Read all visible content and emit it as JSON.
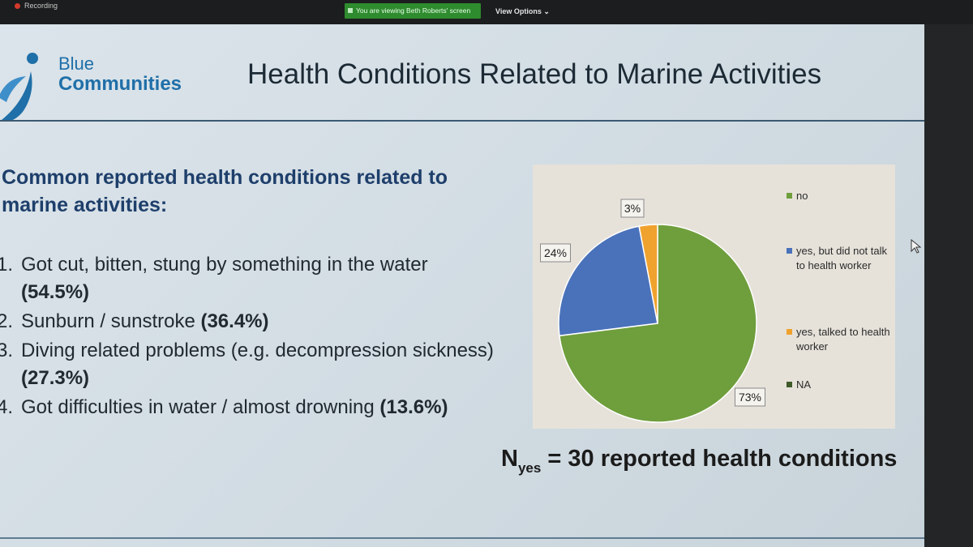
{
  "meeting": {
    "recording_text": "Recording",
    "share_banner": "You are viewing Beth Roberts' screen",
    "view_options": "View Options"
  },
  "logo": {
    "line1": "Blue",
    "line2": "Communities"
  },
  "slide": {
    "title": "Health Conditions Related to Marine Activities",
    "intro": "Common reported health conditions related to marine activities:",
    "items": [
      {
        "num": "1.",
        "text": "Got cut, bitten, stung by something in the water",
        "pct": "(54.5%)"
      },
      {
        "num": "2.",
        "text": "Sunburn / sunstroke",
        "pct": "(36.4%)"
      },
      {
        "num": "3.",
        "text": "Diving related problems (e.g. decompression sickness)",
        "pct": "(27.3%)"
      },
      {
        "num": "4.",
        "text": "Got difficulties in water / almost drowning",
        "pct": "(13.6%)"
      }
    ],
    "nyes_main": "N",
    "nyes_sub": "yes",
    "nyes_rest": " = 30 reported health conditions"
  },
  "chart_data": {
    "type": "pie",
    "slices": [
      {
        "label": "no",
        "value": 73,
        "data_label": "73%",
        "color": "#6f9e3c"
      },
      {
        "label": "yes, but did not talk to health worker",
        "value": 24,
        "data_label": "24%",
        "color": "#4a72bb"
      },
      {
        "label": "yes, talked to health worker",
        "value": 3,
        "data_label": "3%",
        "color": "#f0a22e"
      },
      {
        "label": "NA",
        "value": 0,
        "data_label": "",
        "color": "#3f5a2a"
      }
    ],
    "legend_position": "right",
    "start_angle_deg": 0,
    "direction": "clockwise"
  }
}
